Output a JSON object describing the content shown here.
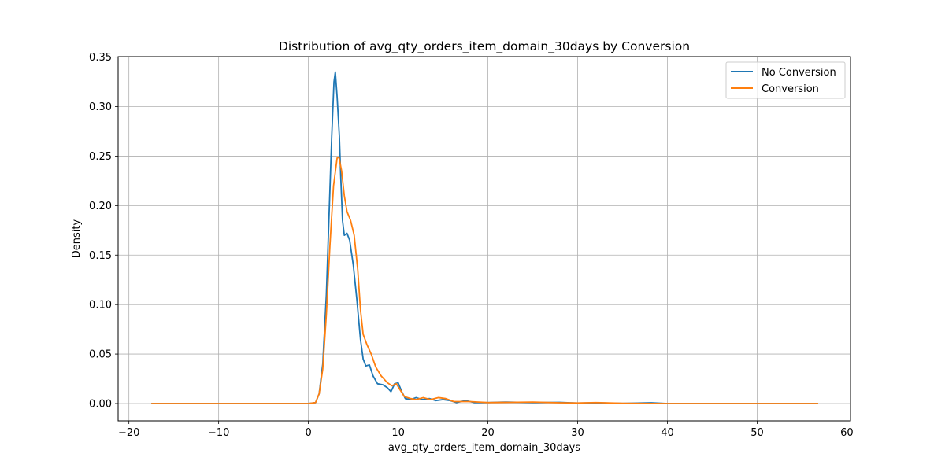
{
  "chart_data": {
    "type": "line",
    "title": "Distribution of avg_qty_orders_item_domain_30days by Conversion",
    "xlabel": "avg_qty_orders_item_domain_30days",
    "ylabel": "Density",
    "xlim": [
      -21.2,
      60.4
    ],
    "ylim": [
      -0.0175,
      0.3505
    ],
    "x_ticks": [
      -20,
      -10,
      0,
      10,
      20,
      30,
      40,
      50,
      60
    ],
    "x_tick_labels": [
      "−20",
      "−10",
      "0",
      "10",
      "20",
      "30",
      "40",
      "50",
      "60"
    ],
    "y_ticks": [
      0.0,
      0.05,
      0.1,
      0.15,
      0.2,
      0.25,
      0.3,
      0.35
    ],
    "y_tick_labels": [
      "0.00",
      "0.05",
      "0.10",
      "0.15",
      "0.20",
      "0.25",
      "0.30",
      "0.35"
    ],
    "grid": true,
    "legend_position": "top-right",
    "series": [
      {
        "name": "No Conversion",
        "color": "#1f77b4",
        "points": [
          [
            -17.5,
            0.0
          ],
          [
            0.0,
            0.0
          ],
          [
            0.8,
            0.001
          ],
          [
            1.2,
            0.01
          ],
          [
            1.6,
            0.04
          ],
          [
            2.0,
            0.11
          ],
          [
            2.3,
            0.19
          ],
          [
            2.6,
            0.27
          ],
          [
            2.85,
            0.325
          ],
          [
            3.0,
            0.335
          ],
          [
            3.2,
            0.31
          ],
          [
            3.45,
            0.27
          ],
          [
            3.6,
            0.23
          ],
          [
            3.8,
            0.185
          ],
          [
            4.0,
            0.17
          ],
          [
            4.3,
            0.172
          ],
          [
            4.6,
            0.165
          ],
          [
            5.0,
            0.14
          ],
          [
            5.4,
            0.105
          ],
          [
            5.8,
            0.065
          ],
          [
            6.1,
            0.045
          ],
          [
            6.4,
            0.038
          ],
          [
            6.8,
            0.039
          ],
          [
            7.2,
            0.028
          ],
          [
            7.7,
            0.02
          ],
          [
            8.3,
            0.019
          ],
          [
            8.8,
            0.016
          ],
          [
            9.2,
            0.012
          ],
          [
            9.6,
            0.02
          ],
          [
            10.0,
            0.021
          ],
          [
            10.4,
            0.012
          ],
          [
            10.8,
            0.005
          ],
          [
            11.4,
            0.004
          ],
          [
            12.0,
            0.006
          ],
          [
            12.7,
            0.004
          ],
          [
            13.5,
            0.005
          ],
          [
            14.2,
            0.003
          ],
          [
            15.0,
            0.004
          ],
          [
            15.8,
            0.003
          ],
          [
            16.5,
            0.001
          ],
          [
            17.5,
            0.003
          ],
          [
            18.5,
            0.001
          ],
          [
            20.0,
            0.001
          ],
          [
            22.0,
            0.0015
          ],
          [
            25.0,
            0.001
          ],
          [
            28.0,
            0.0012
          ],
          [
            30.0,
            0.0005
          ],
          [
            32.0,
            0.0008
          ],
          [
            35.0,
            0.0002
          ],
          [
            38.2,
            0.0008
          ],
          [
            40.0,
            0.0
          ],
          [
            56.8,
            0.0
          ]
        ]
      },
      {
        "name": "Conversion",
        "color": "#ff7f0e",
        "points": [
          [
            -17.5,
            0.0
          ],
          [
            0.0,
            0.0
          ],
          [
            0.8,
            0.001
          ],
          [
            1.2,
            0.01
          ],
          [
            1.6,
            0.035
          ],
          [
            2.0,
            0.09
          ],
          [
            2.4,
            0.16
          ],
          [
            2.8,
            0.22
          ],
          [
            3.2,
            0.248
          ],
          [
            3.4,
            0.249
          ],
          [
            3.7,
            0.235
          ],
          [
            4.0,
            0.21
          ],
          [
            4.3,
            0.194
          ],
          [
            4.7,
            0.185
          ],
          [
            5.1,
            0.17
          ],
          [
            5.5,
            0.135
          ],
          [
            5.8,
            0.095
          ],
          [
            6.1,
            0.07
          ],
          [
            6.5,
            0.06
          ],
          [
            7.0,
            0.05
          ],
          [
            7.5,
            0.037
          ],
          [
            8.1,
            0.028
          ],
          [
            8.8,
            0.021
          ],
          [
            9.3,
            0.018
          ],
          [
            9.8,
            0.02
          ],
          [
            10.2,
            0.014
          ],
          [
            10.7,
            0.007
          ],
          [
            11.4,
            0.005
          ],
          [
            12.0,
            0.004
          ],
          [
            12.8,
            0.006
          ],
          [
            13.6,
            0.004
          ],
          [
            14.5,
            0.006
          ],
          [
            15.3,
            0.005
          ],
          [
            16.2,
            0.002
          ],
          [
            17.0,
            0.002
          ],
          [
            18.0,
            0.002
          ],
          [
            20.0,
            0.001
          ],
          [
            22.5,
            0.0012
          ],
          [
            25.0,
            0.0015
          ],
          [
            28.0,
            0.0008
          ],
          [
            30.0,
            0.0006
          ],
          [
            32.0,
            0.001
          ],
          [
            35.0,
            0.0003
          ],
          [
            40.0,
            0.0
          ],
          [
            56.8,
            0.0
          ]
        ]
      }
    ]
  }
}
